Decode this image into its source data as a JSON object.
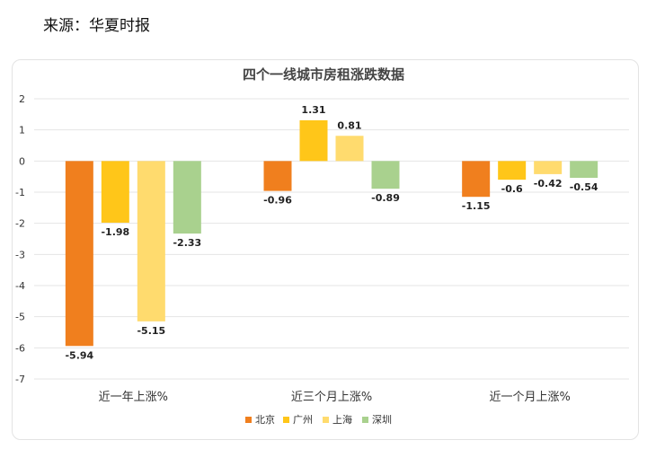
{
  "source_text": "来源：华夏时报",
  "chart_data": {
    "type": "bar",
    "title": "四个一线城市房租涨跌数据",
    "categories": [
      "近一年上涨%",
      "近三个月上涨%",
      "近一个月上涨%"
    ],
    "ylim": [
      -7,
      2
    ],
    "yticks": [
      2,
      1,
      0,
      -1,
      -2,
      -3,
      -4,
      -5,
      -6,
      -7
    ],
    "grid": true,
    "legend_position": "bottom",
    "series": [
      {
        "name": "北京",
        "color": "#f07f1e",
        "values": [
          -5.94,
          -0.96,
          -1.15
        ]
      },
      {
        "name": "广州",
        "color": "#ffc619",
        "values": [
          -1.98,
          1.31,
          -0.6
        ]
      },
      {
        "name": "上海",
        "color": "#ffdb6e",
        "values": [
          -5.15,
          0.81,
          -0.42
        ]
      },
      {
        "name": "深圳",
        "color": "#a9d18e",
        "values": [
          -2.33,
          -0.89,
          -0.54
        ]
      }
    ]
  }
}
